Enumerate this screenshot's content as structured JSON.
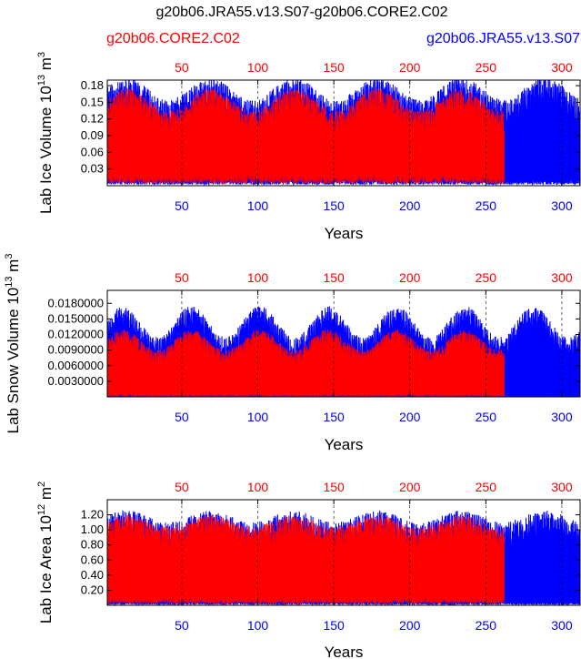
{
  "title": "g20b06.JRA55.v13.S07-g20b06.CORE2.C02",
  "legend": {
    "left_label": "g20b06.CORE2.C02",
    "right_label": "g20b06.JRA55.v13.S07"
  },
  "colors": {
    "series_a": "#ff0000",
    "series_b": "#0000ff",
    "axis": "#000000",
    "grid": "#000000"
  },
  "chart_data": [
    {
      "type": "line",
      "ylabel": "Lab Ice Volume 10^13 m^3",
      "ylabel_main": "Lab Ice Volume 10",
      "ylabel_exp": "13",
      "ylabel_unit": "m",
      "ylabel_unit_exp": "3",
      "xlabel": "Years",
      "xlim": [
        1,
        312
      ],
      "ylim": [
        0.0,
        0.19
      ],
      "yticks": [
        0.03,
        0.06,
        0.09,
        0.12,
        0.15,
        0.18
      ],
      "ytick_labels": [
        "0.03",
        "0.06",
        "0.09",
        "0.12",
        "0.15",
        "0.18"
      ],
      "xticks": [
        50,
        100,
        150,
        200,
        250,
        300
      ],
      "xtick_labels": [
        "50",
        "100",
        "150",
        "200",
        "250",
        "300"
      ],
      "grid": "vertical dashed",
      "series": [
        {
          "name": "g20b06.CORE2.C02",
          "x_end": 262,
          "low": 0.01,
          "high": 0.155,
          "cycle_amp": 0.02,
          "cycle_len": 55,
          "color": "#ff0000"
        },
        {
          "name": "g20b06.JRA55.v13.S07",
          "x_end": 312,
          "low": 0.005,
          "high": 0.175,
          "cycle_amp": 0.02,
          "cycle_len": 55,
          "color": "#0000ff"
        }
      ]
    },
    {
      "type": "line",
      "ylabel": "Lab Snow Volume 10^13 m^3",
      "ylabel_main": "Lab Snow Volume 10",
      "ylabel_exp": "13",
      "ylabel_unit": "m",
      "ylabel_unit_exp": "3",
      "xlabel": "Years",
      "xlim": [
        1,
        312
      ],
      "ylim": [
        0.0,
        0.0205
      ],
      "yticks": [
        0.003,
        0.006,
        0.009,
        0.012,
        0.015,
        0.018
      ],
      "ytick_labels": [
        "0.0030000",
        "0.0060000",
        "0.0090000",
        "0.0120000",
        "0.0150000",
        "0.0180000"
      ],
      "xticks": [
        50,
        100,
        150,
        200,
        250,
        300
      ],
      "xtick_labels": [
        "50",
        "100",
        "150",
        "200",
        "250",
        "300"
      ],
      "grid": "vertical dashed",
      "series": [
        {
          "name": "g20b06.CORE2.C02",
          "x_end": 262,
          "low": 0.0003,
          "high": 0.011,
          "cycle_amp": 0.002,
          "cycle_len": 45,
          "color": "#ff0000"
        },
        {
          "name": "g20b06.JRA55.v13.S07",
          "x_end": 312,
          "low": 0.0001,
          "high": 0.0145,
          "cycle_amp": 0.003,
          "cycle_len": 45,
          "color": "#0000ff"
        }
      ]
    },
    {
      "type": "line",
      "ylabel": "Lab Ice Area 10^12 m^2",
      "ylabel_main": "Lab Ice Area 10",
      "ylabel_exp": "12",
      "ylabel_unit": "m",
      "ylabel_unit_exp": "2",
      "xlabel": "Years",
      "xlim": [
        1,
        312
      ],
      "ylim": [
        0.0,
        1.4
      ],
      "yticks": [
        0.2,
        0.4,
        0.6,
        0.8,
        1.0,
        1.2
      ],
      "ytick_labels": [
        "0.20",
        "0.40",
        "0.60",
        "0.80",
        "1.00",
        "1.20"
      ],
      "xticks": [
        50,
        100,
        150,
        200,
        250,
        300
      ],
      "xtick_labels": [
        "50",
        "100",
        "150",
        "200",
        "250",
        "300"
      ],
      "grid": "vertical dashed",
      "series": [
        {
          "name": "g20b06.CORE2.C02",
          "x_end": 262,
          "low": 0.05,
          "high": 1.12,
          "cycle_amp": 0.08,
          "cycle_len": 55,
          "color": "#ff0000"
        },
        {
          "name": "g20b06.JRA55.v13.S07",
          "x_end": 312,
          "low": 0.02,
          "high": 1.18,
          "cycle_amp": 0.08,
          "cycle_len": 55,
          "color": "#0000ff"
        }
      ]
    }
  ]
}
